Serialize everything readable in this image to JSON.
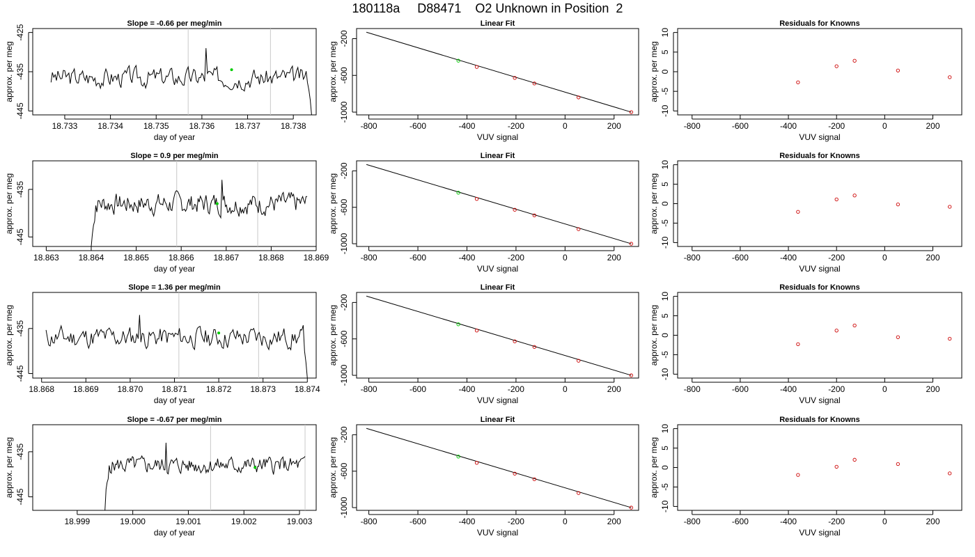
{
  "title": "180118a     D88471    O2 Unknown in Position  2",
  "chart_data": [
    {
      "type": "line",
      "title": "Slope =  -0.66  per meg/min",
      "xlabel": "day of year",
      "ylabel": "approx. per meg",
      "xlim": [
        18.7323,
        18.7385
      ],
      "ylim": [
        -446,
        -424
      ],
      "xticks": [
        18.733,
        18.734,
        18.735,
        18.736,
        18.737,
        18.738
      ],
      "xtick_labels": [
        "18.733",
        "18.734",
        "18.735",
        "18.736",
        "18.737",
        "18.738"
      ],
      "yticks": [
        -445,
        -435,
        -425
      ],
      "ytick_labels": [
        "-445",
        "-435",
        "-425"
      ],
      "vlines": [
        18.7357,
        18.7375
      ],
      "x_start": 18.7327,
      "x_end": 18.7384,
      "base": -436.5,
      "amp": 2.6,
      "seed": 3,
      "tail": "down",
      "end_y": -446,
      "spike": {
        "x": 18.7361,
        "y": -429
      },
      "marker": {
        "x": 18.73665,
        "y": -434.5,
        "color": "#00cc00"
      }
    },
    {
      "type": "scatter",
      "title": "Linear Fit",
      "xlabel": "VUV signal",
      "ylabel": "approx. per meg",
      "xlim": [
        -850,
        300
      ],
      "ylim": [
        -1030,
        -90
      ],
      "xticks": [
        -800,
        -600,
        -400,
        -200,
        0,
        200
      ],
      "xtick_labels": [
        "-800",
        "-600",
        "-400",
        "-200",
        "0",
        "200"
      ],
      "yticks": [
        -1000,
        -600,
        -200
      ],
      "ytick_labels": [
        "-1000",
        "-600",
        "-200"
      ],
      "fit_line": {
        "x": [
          -810,
          270
        ],
        "y": [
          -130,
          -1000
        ]
      },
      "points": {
        "x": [
          -435,
          -360,
          -205,
          -125,
          55,
          270
        ],
        "y": [
          -440,
          -508,
          -627,
          -688,
          -840,
          -1000
        ]
      },
      "point_colors": [
        "#00cc00",
        "#cc0000",
        "#cc0000",
        "#cc0000",
        "#cc0000",
        "#cc0000"
      ]
    },
    {
      "type": "scatter",
      "title": "Residuals for Knowns",
      "xlabel": "VUV signal",
      "ylabel": "approx. per meg",
      "xlim": [
        -860,
        320
      ],
      "ylim": [
        -11,
        11
      ],
      "xticks": [
        -800,
        -600,
        -400,
        -200,
        0,
        200
      ],
      "xtick_labels": [
        "-800",
        "-600",
        "-400",
        "-200",
        "0",
        "200"
      ],
      "yticks": [
        -10,
        -5,
        0,
        5,
        10
      ],
      "ytick_labels": [
        "-10",
        "-5",
        "0",
        "5",
        "10"
      ],
      "points": {
        "x": [
          -360,
          -200,
          -125,
          55,
          270
        ],
        "y": [
          -2.7,
          1.4,
          2.8,
          0.3,
          -1.4
        ]
      }
    },
    {
      "type": "line",
      "title": "Slope =  0.9  per meg/min",
      "xlabel": "day of year",
      "ylabel": "approx. per meg",
      "xlim": [
        18.8627,
        18.869
      ],
      "ylim": [
        -447,
        -429
      ],
      "xticks": [
        18.863,
        18.864,
        18.865,
        18.866,
        18.867,
        18.868,
        18.869
      ],
      "xtick_labels": [
        "18.863",
        "18.864",
        "18.865",
        "18.866",
        "18.867",
        "18.868",
        "18.869"
      ],
      "yticks": [
        -445,
        -435
      ],
      "ytick_labels": [
        "-445",
        "-435"
      ],
      "vlines": [
        18.8659,
        18.8677
      ],
      "x_start": 18.864,
      "x_end": 18.8688,
      "base": -438,
      "amp": 2.3,
      "seed": 7,
      "tail": "start-low",
      "start_y": -447,
      "spike": {
        "x": 18.8669,
        "y": -433
      },
      "marker": {
        "x": 18.8668,
        "y": -438,
        "color": "#00cc00"
      }
    },
    {
      "type": "scatter",
      "title": "Linear Fit",
      "xlabel": "VUV signal",
      "ylabel": "approx. per meg",
      "xlim": [
        -850,
        300
      ],
      "ylim": [
        -1030,
        -90
      ],
      "xticks": [
        -800,
        -600,
        -400,
        -200,
        0,
        200
      ],
      "xtick_labels": [
        "-800",
        "-600",
        "-400",
        "-200",
        "0",
        "200"
      ],
      "yticks": [
        -1000,
        -600,
        -200
      ],
      "ytick_labels": [
        "-1000",
        "-600",
        "-200"
      ],
      "fit_line": {
        "x": [
          -810,
          270
        ],
        "y": [
          -130,
          -1000
        ]
      },
      "points": {
        "x": [
          -435,
          -360,
          -205,
          -125,
          55,
          270
        ],
        "y": [
          -440,
          -508,
          -627,
          -688,
          -840,
          -1000
        ]
      },
      "point_colors": [
        "#00cc00",
        "#cc0000",
        "#cc0000",
        "#cc0000",
        "#cc0000",
        "#cc0000"
      ]
    },
    {
      "type": "scatter",
      "title": "Residuals for Knowns",
      "xlabel": "VUV signal",
      "ylabel": "approx. per meg",
      "xlim": [
        -860,
        320
      ],
      "ylim": [
        -11,
        11
      ],
      "xticks": [
        -800,
        -600,
        -400,
        -200,
        0,
        200
      ],
      "xtick_labels": [
        "-800",
        "-600",
        "-400",
        "-200",
        "0",
        "200"
      ],
      "yticks": [
        -10,
        -5,
        0,
        5,
        10
      ],
      "ytick_labels": [
        "-10",
        "-5",
        "0",
        "5",
        "10"
      ],
      "points": {
        "x": [
          -360,
          -200,
          -125,
          55,
          270
        ],
        "y": [
          -2.1,
          1.1,
          2.1,
          -0.2,
          -0.8
        ]
      }
    },
    {
      "type": "line",
      "title": "Slope =  1.36  per meg/min",
      "xlabel": "day of year",
      "ylabel": "approx. per meg",
      "xlim": [
        18.8678,
        18.8742
      ],
      "ylim": [
        -446,
        -427
      ],
      "xticks": [
        18.868,
        18.869,
        18.87,
        18.871,
        18.872,
        18.873,
        18.874
      ],
      "xtick_labels": [
        "18.868",
        "18.869",
        "18.870",
        "18.871",
        "18.872",
        "18.873",
        "18.874"
      ],
      "yticks": [
        -445,
        -435
      ],
      "ytick_labels": [
        "-445",
        "-435"
      ],
      "vlines": [
        18.8711,
        18.8729
      ],
      "x_start": 18.8681,
      "x_end": 18.874,
      "base": -437,
      "amp": 2.5,
      "seed": 11,
      "tail": "down",
      "end_y": -446,
      "spike": {
        "x": 18.8702,
        "y": -432
      },
      "marker": {
        "x": 18.872,
        "y": -436,
        "color": "#00cc00"
      }
    },
    {
      "type": "scatter",
      "title": "Linear Fit",
      "xlabel": "VUV signal",
      "ylabel": "approx. per meg",
      "xlim": [
        -850,
        300
      ],
      "ylim": [
        -1030,
        -90
      ],
      "xticks": [
        -800,
        -600,
        -400,
        -200,
        0,
        200
      ],
      "xtick_labels": [
        "-800",
        "-600",
        "-400",
        "-200",
        "0",
        "200"
      ],
      "yticks": [
        -1000,
        -600,
        -200
      ],
      "ytick_labels": [
        "-1000",
        "-600",
        "-200"
      ],
      "fit_line": {
        "x": [
          -810,
          270
        ],
        "y": [
          -130,
          -1000
        ]
      },
      "points": {
        "x": [
          -435,
          -360,
          -205,
          -125,
          55,
          270
        ],
        "y": [
          -440,
          -508,
          -627,
          -688,
          -840,
          -1000
        ]
      },
      "point_colors": [
        "#00cc00",
        "#cc0000",
        "#cc0000",
        "#cc0000",
        "#cc0000",
        "#cc0000"
      ]
    },
    {
      "type": "scatter",
      "title": "Residuals for Knowns",
      "xlabel": "VUV signal",
      "ylabel": "approx. per meg",
      "xlim": [
        -860,
        320
      ],
      "ylim": [
        -11,
        11
      ],
      "xticks": [
        -800,
        -600,
        -400,
        -200,
        0,
        200
      ],
      "xtick_labels": [
        "-800",
        "-600",
        "-400",
        "-200",
        "0",
        "200"
      ],
      "yticks": [
        -10,
        -5,
        0,
        5,
        10
      ],
      "ytick_labels": [
        "-10",
        "-5",
        "0",
        "5",
        "10"
      ],
      "points": {
        "x": [
          -360,
          -200,
          -125,
          55,
          270
        ],
        "y": [
          -2.3,
          1.2,
          2.5,
          -0.5,
          -0.9
        ]
      }
    },
    {
      "type": "line",
      "title": "Slope =  -0.67  per meg/min",
      "xlabel": "day of year",
      "ylabel": "approx. per meg",
      "xlim": [
        18.9982,
        19.0033
      ],
      "ylim": [
        -448,
        -429
      ],
      "xticks": [
        18.999,
        19.0,
        19.001,
        19.002,
        19.003
      ],
      "xtick_labels": [
        "18.999",
        "19.000",
        "19.001",
        "19.002",
        "19.003"
      ],
      "yticks": [
        -445,
        -435
      ],
      "ytick_labels": [
        "-445",
        "-435"
      ],
      "vlines": [
        19.0014,
        19.0031
      ],
      "x_start": 18.9995,
      "x_end": 19.0031,
      "base": -438,
      "amp": 1.9,
      "seed": 5,
      "tail": "start-low",
      "start_y": -448,
      "spike": {
        "x": 19.0006,
        "y": -433
      },
      "marker": {
        "x": 19.0022,
        "y": -438.5,
        "color": "#00cc00"
      }
    },
    {
      "type": "scatter",
      "title": "Linear Fit",
      "xlabel": "VUV signal",
      "ylabel": "approx. per meg",
      "xlim": [
        -850,
        300
      ],
      "ylim": [
        -1030,
        -90
      ],
      "xticks": [
        -800,
        -600,
        -400,
        -200,
        0,
        200
      ],
      "xtick_labels": [
        "-800",
        "-600",
        "-400",
        "-200",
        "0",
        "200"
      ],
      "yticks": [
        -1000,
        -600,
        -200
      ],
      "ytick_labels": [
        "-1000",
        "-600",
        "-200"
      ],
      "fit_line": {
        "x": [
          -810,
          270
        ],
        "y": [
          -130,
          -1000
        ]
      },
      "points": {
        "x": [
          -435,
          -360,
          -205,
          -125,
          55,
          270
        ],
        "y": [
          -440,
          -508,
          -627,
          -688,
          -840,
          -1000
        ]
      },
      "point_colors": [
        "#00cc00",
        "#cc0000",
        "#cc0000",
        "#cc0000",
        "#cc0000",
        "#cc0000"
      ]
    },
    {
      "type": "scatter",
      "title": "Residuals for Knowns",
      "xlabel": "VUV signal",
      "ylabel": "approx. per meg",
      "xlim": [
        -860,
        320
      ],
      "ylim": [
        -11,
        11
      ],
      "xticks": [
        -800,
        -600,
        -400,
        -200,
        0,
        200
      ],
      "xtick_labels": [
        "-800",
        "-600",
        "-400",
        "-200",
        "0",
        "200"
      ],
      "yticks": [
        -10,
        -5,
        0,
        5,
        10
      ],
      "ytick_labels": [
        "-10",
        "-5",
        "0",
        "5",
        "10"
      ],
      "points": {
        "x": [
          -360,
          -200,
          -125,
          55,
          270
        ],
        "y": [
          -1.9,
          0.2,
          2.0,
          0.9,
          -1.5
        ]
      }
    }
  ]
}
